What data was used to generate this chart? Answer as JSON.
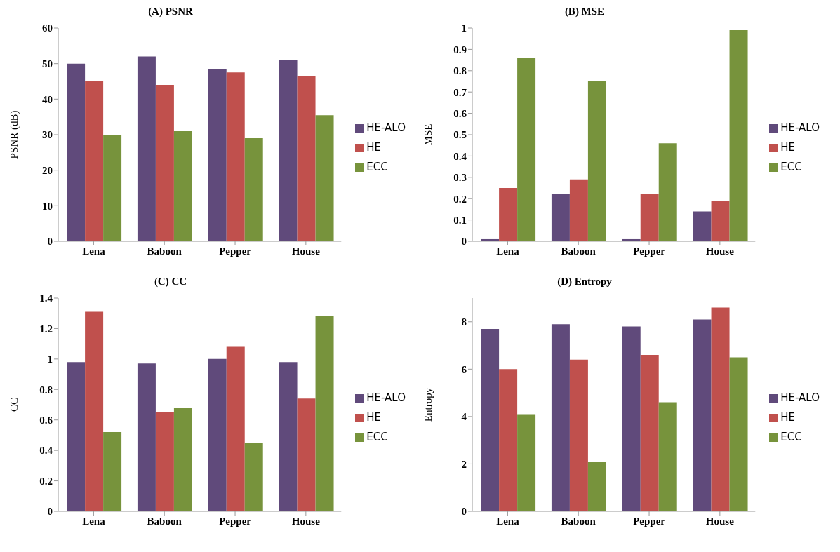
{
  "chart_data": [
    {
      "type": "bar",
      "title": "(A) PSNR",
      "ylabel": "PSNR (dB)",
      "categories": [
        "Lena",
        "Baboon",
        "Pepper",
        "House"
      ],
      "ylim": [
        0,
        60
      ],
      "yticks": [
        0,
        10,
        20,
        30,
        40,
        50,
        60
      ],
      "grid": false,
      "legend": "right",
      "series": [
        {
          "name": "HE-ALO",
          "color": "#604a7b",
          "values": [
            50,
            52,
            48.5,
            51
          ]
        },
        {
          "name": "HE",
          "color": "#c0504d",
          "values": [
            45,
            44,
            47.5,
            46.5
          ]
        },
        {
          "name": "ECC",
          "color": "#77933c",
          "values": [
            30,
            31,
            29,
            35.5
          ]
        }
      ]
    },
    {
      "type": "bar",
      "title": "(B) MSE",
      "ylabel": "MSE",
      "categories": [
        "Lena",
        "Baboon",
        "Pepper",
        "House"
      ],
      "ylim": [
        0,
        1
      ],
      "yticks": [
        0,
        0.1,
        0.2,
        0.3,
        0.4,
        0.5,
        0.6,
        0.7,
        0.8,
        0.9,
        1
      ],
      "grid": false,
      "legend": "right",
      "series": [
        {
          "name": "HE-ALO",
          "color": "#604a7b",
          "values": [
            0.01,
            0.22,
            0.01,
            0.14
          ]
        },
        {
          "name": "HE",
          "color": "#c0504d",
          "values": [
            0.25,
            0.29,
            0.22,
            0.19
          ]
        },
        {
          "name": "ECC",
          "color": "#77933c",
          "values": [
            0.86,
            0.75,
            0.46,
            0.99
          ]
        }
      ]
    },
    {
      "type": "bar",
      "title": "(C) CC",
      "ylabel": "CC",
      "categories": [
        "Lena",
        "Baboon",
        "Pepper",
        "House"
      ],
      "ylim": [
        0,
        1.4
      ],
      "yticks": [
        0,
        0.2,
        0.4,
        0.6,
        0.8,
        1,
        1.2,
        1.4
      ],
      "grid": false,
      "legend": "right",
      "series": [
        {
          "name": "HE-ALO",
          "color": "#604a7b",
          "values": [
            0.98,
            0.97,
            1.0,
            0.98
          ]
        },
        {
          "name": "HE",
          "color": "#c0504d",
          "values": [
            1.31,
            0.65,
            1.08,
            0.74
          ]
        },
        {
          "name": "ECC",
          "color": "#77933c",
          "values": [
            0.52,
            0.68,
            0.45,
            1.28
          ]
        }
      ]
    },
    {
      "type": "bar",
      "title": "(D) Entropy",
      "ylabel": "Entropy",
      "categories": [
        "Lena",
        "Baboon",
        "Pepper",
        "House"
      ],
      "ylim": [
        0,
        9
      ],
      "yticks": [
        0,
        2,
        4,
        6,
        8
      ],
      "grid": false,
      "legend": "right",
      "series": [
        {
          "name": "HE-ALO",
          "color": "#604a7b",
          "values": [
            7.7,
            7.9,
            7.8,
            8.1
          ]
        },
        {
          "name": "HE",
          "color": "#c0504d",
          "values": [
            6.0,
            6.4,
            6.6,
            8.6
          ]
        },
        {
          "name": "ECC",
          "color": "#77933c",
          "values": [
            4.1,
            2.1,
            4.6,
            6.5
          ]
        }
      ]
    }
  ]
}
